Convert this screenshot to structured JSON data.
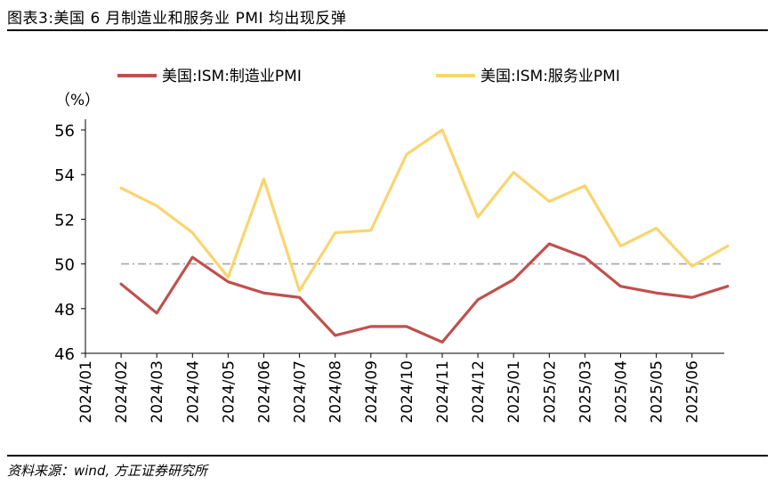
{
  "header": {
    "title": "图表3:美国 6 月制造业和服务业 PMI 均出现反弹"
  },
  "footer": {
    "source": "资料来源：wind, 方正证券研究所"
  },
  "colors": {
    "manufacturing": "#C0504D",
    "services": "#F9D56E",
    "reference": "#A6A6A6"
  },
  "chart_data": {
    "type": "line",
    "ylabel": "（%）",
    "ylim": [
      46,
      56
    ],
    "yticks": [
      46,
      48,
      50,
      52,
      54,
      56
    ],
    "ytick_labels": [
      "46",
      "48",
      "50",
      "52",
      "54",
      "56"
    ],
    "x": [
      "2024/01",
      "2024/02",
      "2024/03",
      "2024/04",
      "2024/05",
      "2024/06",
      "2024/07",
      "2024/08",
      "2024/09",
      "2024/10",
      "2024/11",
      "2024/12",
      "2025/01",
      "2025/02",
      "2025/03",
      "2025/04",
      "2025/05",
      "2025/06"
    ],
    "reference_line": 50,
    "grid": false,
    "legend_position": "top",
    "series": [
      {
        "name": "美国:ISM:制造业PMI",
        "values": [
          49.1,
          47.8,
          50.3,
          49.2,
          48.7,
          48.5,
          46.8,
          47.2,
          47.2,
          46.5,
          48.4,
          49.3,
          50.9,
          50.3,
          49.0,
          48.7,
          48.5,
          49.0
        ]
      },
      {
        "name": "美国:ISM:服务业PMI",
        "values": [
          53.4,
          52.6,
          51.4,
          49.4,
          53.8,
          48.8,
          51.4,
          51.5,
          54.9,
          56.0,
          52.1,
          54.1,
          52.8,
          53.5,
          50.8,
          51.6,
          49.9,
          50.8
        ]
      }
    ]
  }
}
